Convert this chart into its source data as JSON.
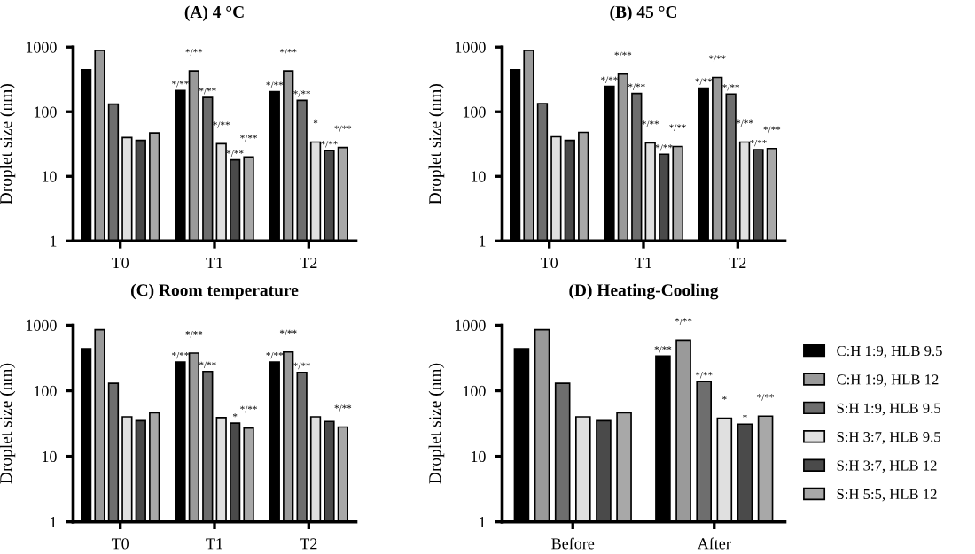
{
  "chart_data": [
    {
      "type": "bar",
      "title": "(A) 4 °C",
      "ylabel": "Droplet size (nm)",
      "categories": [
        "T0",
        "T1",
        "T2"
      ],
      "log": true,
      "ylim": [
        1,
        1000
      ],
      "yticks": [
        1,
        10,
        100,
        1000
      ],
      "grid": false,
      "legend": false,
      "series": [
        {
          "color": "#000000",
          "values": [
            447,
            213,
            205
          ],
          "value_labels": [
            null,
            "*/**",
            "*/**"
          ]
        },
        {
          "color": "#9a9a9a",
          "values": [
            890,
            427,
            427
          ],
          "value_labels": [
            null,
            "*/**",
            "*/**"
          ]
        },
        {
          "color": "#6e6e6e",
          "values": [
            131,
            166,
            150
          ],
          "value_labels": [
            null,
            "*/**",
            "*/**"
          ]
        },
        {
          "color": "#e0e0e0",
          "values": [
            40,
            32,
            34
          ],
          "value_labels": [
            null,
            "*/**",
            "*"
          ]
        },
        {
          "color": "#4a4a4a",
          "values": [
            36,
            18,
            25
          ],
          "value_labels": [
            null,
            "*/**",
            "*/**"
          ]
        },
        {
          "color": "#a8a8a8",
          "values": [
            47,
            20,
            28
          ],
          "value_labels": [
            null,
            "*/**",
            "*/**"
          ]
        }
      ]
    },
    {
      "type": "bar",
      "title": "(B) 45 °C",
      "ylabel": "Droplet size (nm)",
      "categories": [
        "T0",
        "T1",
        "T2"
      ],
      "log": true,
      "ylim": [
        1,
        1000
      ],
      "yticks": [
        1,
        10,
        100,
        1000
      ],
      "grid": false,
      "legend": false,
      "series": [
        {
          "color": "#000000",
          "values": [
            447,
            246,
            232
          ],
          "value_labels": [
            null,
            "*/**",
            "*/**"
          ]
        },
        {
          "color": "#9a9a9a",
          "values": [
            890,
            383,
            339
          ],
          "value_labels": [
            null,
            "*/**",
            "*/**"
          ]
        },
        {
          "color": "#6e6e6e",
          "values": [
            134,
            192,
            188
          ],
          "value_labels": [
            null,
            "*/**",
            "*/**"
          ]
        },
        {
          "color": "#e0e0e0",
          "values": [
            41,
            33,
            34
          ],
          "value_labels": [
            null,
            "*/**",
            "*/**"
          ]
        },
        {
          "color": "#4a4a4a",
          "values": [
            36,
            22,
            26
          ],
          "value_labels": [
            null,
            "*/**",
            "*/**"
          ]
        },
        {
          "color": "#a8a8a8",
          "values": [
            48,
            29,
            27
          ],
          "value_labels": [
            null,
            "*/**",
            "*/**"
          ]
        }
      ]
    },
    {
      "type": "bar",
      "title": "(C) Room temperature",
      "ylabel": "Droplet size (nm)",
      "categories": [
        "T0",
        "T1",
        "T2"
      ],
      "log": true,
      "ylim": [
        1,
        1000
      ],
      "yticks": [
        1,
        10,
        100,
        1000
      ],
      "grid": false,
      "legend": false,
      "series": [
        {
          "color": "#000000",
          "values": [
            436,
            275,
            275
          ],
          "value_labels": [
            null,
            "*/**",
            "*/**"
          ]
        },
        {
          "color": "#9a9a9a",
          "values": [
            850,
            375,
            390
          ],
          "value_labels": [
            null,
            "*/**",
            "*/**"
          ]
        },
        {
          "color": "#6e6e6e",
          "values": [
            130,
            197,
            190
          ],
          "value_labels": [
            null,
            "*/**",
            "*/**"
          ]
        },
        {
          "color": "#e0e0e0",
          "values": [
            40,
            39,
            40
          ],
          "value_labels": [
            null,
            null,
            null
          ]
        },
        {
          "color": "#4a4a4a",
          "values": [
            35,
            32,
            34
          ],
          "value_labels": [
            null,
            "*",
            null
          ]
        },
        {
          "color": "#a8a8a8",
          "values": [
            46,
            27,
            28
          ],
          "value_labels": [
            null,
            "*/**",
            "*/**"
          ]
        }
      ]
    },
    {
      "type": "bar",
      "title": "(D) Heating-Cooling",
      "ylabel": "Droplet size (nm)",
      "categories": [
        "Before",
        "After"
      ],
      "log": true,
      "ylim": [
        1,
        1000
      ],
      "yticks": [
        1,
        10,
        100,
        1000
      ],
      "grid": false,
      "legend": "right",
      "series": [
        {
          "name": "C:H 1:9, HLB 9.5",
          "color": "#000000",
          "values": [
            436,
            338
          ],
          "value_labels": [
            null,
            "*/**"
          ]
        },
        {
          "name": "C:H 1:9, HLB 12",
          "color": "#9a9a9a",
          "values": [
            850,
            590
          ],
          "value_labels": [
            null,
            "*/**"
          ]
        },
        {
          "name": "S:H 1:9, HLB 9.5",
          "color": "#6e6e6e",
          "values": [
            130,
            138
          ],
          "value_labels": [
            null,
            "*/**"
          ]
        },
        {
          "name": "S:H 3:7, HLB 9.5",
          "color": "#e0e0e0",
          "values": [
            40,
            38
          ],
          "value_labels": [
            null,
            "*"
          ]
        },
        {
          "name": "S:H 3:7, HLB 12",
          "color": "#4a4a4a",
          "values": [
            35,
            31
          ],
          "value_labels": [
            null,
            "*"
          ]
        },
        {
          "name": "S:H 5:5, HLB 12",
          "color": "#a8a8a8",
          "values": [
            46,
            41
          ],
          "value_labels": [
            null,
            "*/**"
          ]
        }
      ]
    }
  ]
}
